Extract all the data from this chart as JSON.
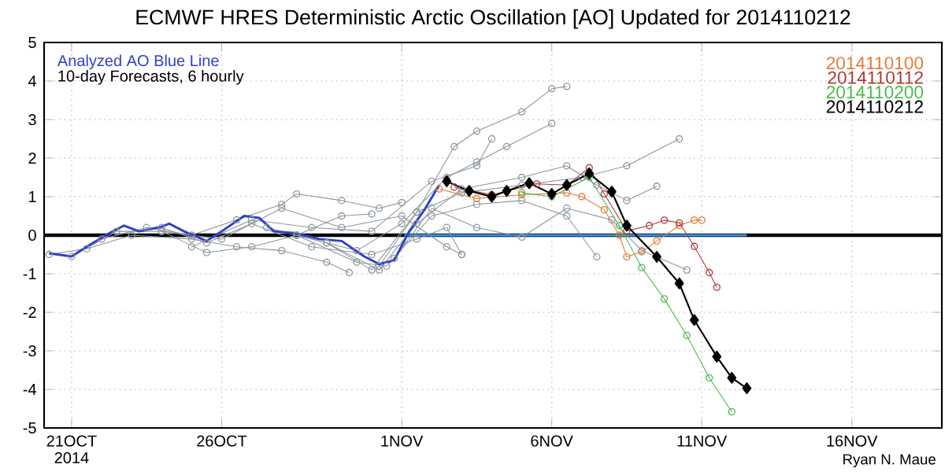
{
  "chart_data": {
    "type": "line",
    "title": "ECMWF HRES Deterministic Arctic Oscillation [AO] Updated for 2014110212",
    "annotations": [
      "Analyzed AO Blue Line",
      "10-day Forecasts, 6 hourly",
      "Ryan N. Maue"
    ],
    "xlim": [
      "2014-10-20T02:00",
      "2014-11-19T00:00"
    ],
    "xticks": [
      {
        "value": "2014-10-21",
        "label": "21OCT 2014"
      },
      {
        "value": "2014-10-26",
        "label": "26OCT"
      },
      {
        "value": "2014-11-01",
        "label": "1NOV"
      },
      {
        "value": "2014-11-06",
        "label": "6NOV"
      },
      {
        "value": "2014-11-11",
        "label": "11NOV"
      },
      {
        "value": "2014-11-16",
        "label": "16NOV"
      }
    ],
    "ylim": [
      -5,
      5
    ],
    "yticks": [
      -5,
      -4,
      -3,
      -2,
      -1,
      0,
      1,
      2,
      3,
      4,
      5
    ],
    "grid": true,
    "legend": "top right",
    "ref_lines": [
      {
        "axis": "y",
        "value": 0,
        "color": "#000000"
      }
    ],
    "series": [
      {
        "color": "#8c969e",
        "marker": "circle",
        "x": [
          "2014-10-20T06:00",
          "2014-10-21T12:00",
          "2014-10-23T00:00",
          "2014-10-25T00:00",
          "2014-10-26T12:00",
          "2014-10-28T00:00",
          "2014-10-29T12:00",
          "2014-10-30T06:00"
        ],
        "values": [
          -0.5,
          -0.35,
          0.0,
          -0.1,
          -0.3,
          -0.4,
          -0.7,
          -0.97
        ]
      },
      {
        "color": "#8c969e",
        "marker": "circle",
        "x": [
          "2014-10-21T00:00",
          "2014-10-22T12:00",
          "2014-10-24T00:00",
          "2014-10-25T12:00",
          "2014-10-27T00:00",
          "2014-10-28T12:00",
          "2014-10-30T00:00",
          "2014-10-31T00:00"
        ],
        "values": [
          -0.55,
          0.1,
          0.1,
          -0.45,
          -0.3,
          0.0,
          0.5,
          0.55
        ]
      },
      {
        "color": "#8c969e",
        "marker": "circle",
        "x": [
          "2014-10-22T00:00",
          "2014-10-23T12:00",
          "2014-10-25T00:00",
          "2014-10-26T12:00",
          "2014-10-28T00:00",
          "2014-10-28T12:00",
          "2014-10-30T00:00",
          "2014-10-31T06:00",
          "2014-11-01T00:00"
        ],
        "values": [
          -0.1,
          0.2,
          0.0,
          0.4,
          0.8,
          1.07,
          0.9,
          0.7,
          0.85
        ]
      },
      {
        "color": "#8c969e",
        "marker": "circle",
        "x": [
          "2014-10-24T00:00",
          "2014-10-25T12:00",
          "2014-10-27T00:00",
          "2014-10-29T00:00",
          "2014-10-31T00:00",
          "2014-11-01T12:00",
          "2014-11-02T12:00",
          "2014-11-03T00:00"
        ],
        "values": [
          0.2,
          -0.2,
          0.3,
          -0.3,
          -0.5,
          -0.1,
          0.2,
          -0.5
        ]
      },
      {
        "color": "#8c969e",
        "marker": "circle",
        "x": [
          "2014-10-25T00:00",
          "2014-10-27T00:00",
          "2014-10-29T00:00",
          "2014-10-31T00:00",
          "2014-11-02T00:00",
          "2014-11-03T12:00",
          "2014-11-04T00:00"
        ],
        "values": [
          -0.3,
          0.4,
          0.2,
          0.1,
          1.4,
          1.8,
          2.5
        ]
      },
      {
        "color": "#8c969e",
        "marker": "circle",
        "x": [
          "2014-10-28T12:00",
          "2014-10-30T12:00",
          "2014-11-01T00:00",
          "2014-11-02T12:00",
          "2014-11-03T12:00",
          "2014-11-04T12:00",
          "2014-11-06T00:00"
        ],
        "values": [
          0.0,
          -0.4,
          0.3,
          1.5,
          1.9,
          2.3,
          2.9
        ]
      },
      {
        "color": "#8c969e",
        "marker": "circle",
        "x": [
          "2014-10-27T12:00",
          "2014-10-29T12:00",
          "2014-10-31T00:00",
          "2014-11-01T12:00",
          "2014-11-02T18:00",
          "2014-11-03T12:00",
          "2014-11-05T00:00",
          "2014-11-06T00:00",
          "2014-11-06T12:00"
        ],
        "values": [
          0.2,
          -0.2,
          -0.9,
          0.6,
          2.3,
          2.7,
          3.2,
          3.8,
          3.86
        ]
      },
      {
        "color": "#8c969e",
        "marker": "circle",
        "x": [
          "2014-10-28T12:00",
          "2014-10-30T12:00",
          "2014-10-31T12:00",
          "2014-11-02T00:00",
          "2014-11-03T12:00",
          "2014-11-05T00:00",
          "2014-11-06T12:00",
          "2014-11-07T12:00"
        ],
        "values": [
          0.0,
          -0.7,
          -0.8,
          0.5,
          0.8,
          0.9,
          0.5,
          -0.56
        ]
      },
      {
        "color": "#8c969e",
        "marker": "circle",
        "x": [
          "2014-10-29T12:00",
          "2014-10-31T06:00",
          "2014-11-01T12:00",
          "2014-11-03T00:00",
          "2014-11-05T00:00",
          "2014-11-06T12:00",
          "2014-11-07T12:00",
          "2014-11-08T12:00",
          "2014-11-09T12:00"
        ],
        "values": [
          -0.2,
          -0.9,
          0.3,
          1.2,
          1.5,
          1.8,
          1.3,
          0.9,
          1.27
        ]
      },
      {
        "color": "#8c969e",
        "marker": "circle",
        "x": [
          "2014-10-31T06:00",
          "2014-11-01T12:00",
          "2014-11-03T00:00",
          "2014-11-05T00:00",
          "2014-11-07T00:00",
          "2014-11-08T12:00",
          "2014-11-10T06:00"
        ],
        "values": [
          -0.8,
          0.6,
          1.1,
          1.3,
          1.5,
          1.8,
          2.5
        ]
      },
      {
        "color": "#8c969e",
        "marker": "circle",
        "x": [
          "2014-10-31T18:00",
          "2014-11-02T00:00",
          "2014-11-03T12:00",
          "2014-11-05T00:00",
          "2014-11-06T12:00",
          "2014-11-08T00:00",
          "2014-11-09T00:00",
          "2014-11-10T12:00"
        ],
        "values": [
          -0.6,
          0.7,
          0.2,
          -0.05,
          0.7,
          0.4,
          -0.4,
          -0.9
        ]
      },
      {
        "color": "#8c969e",
        "marker": "circle",
        "x": [
          "2014-10-24T00:00",
          "2014-10-26T00:00",
          "2014-10-28T00:00",
          "2014-10-30T00:00",
          "2014-11-01T00:00",
          "2014-11-02T12:00",
          "2014-11-03T00:00"
        ],
        "values": [
          0.1,
          -0.1,
          0.7,
          0.2,
          0.5,
          -0.3,
          -0.5
        ]
      },
      {
        "color": "#3a8fd8",
        "marker": "none",
        "x": [
          "2014-11-01T02:00",
          "2014-11-12T12:00"
        ],
        "values": [
          0,
          0
        ]
      },
      {
        "color": "#3040c8",
        "marker": "none",
        "x": [
          "2014-10-20T06:00",
          "2014-10-21T00:00",
          "2014-10-21T12:00",
          "2014-10-22T06:00",
          "2014-10-22T18:00",
          "2014-10-23T06:00",
          "2014-10-24T00:00",
          "2014-10-24T06:00",
          "2014-10-24T18:00",
          "2014-10-25T12:00",
          "2014-10-26T00:00",
          "2014-10-26T18:00",
          "2014-10-27T06:00",
          "2014-10-27T18:00",
          "2014-10-28T12:00",
          "2014-10-29T06:00",
          "2014-10-30T00:00",
          "2014-10-30T18:00",
          "2014-10-31T06:00",
          "2014-10-31T18:00",
          "2014-11-01T06:00",
          "2014-11-01T18:00",
          "2014-11-02T06:00"
        ],
        "values": [
          -0.47,
          -0.55,
          -0.3,
          0.05,
          0.25,
          0.1,
          0.22,
          0.3,
          0.1,
          -0.15,
          0.1,
          0.5,
          0.45,
          0.1,
          0.05,
          -0.1,
          -0.15,
          -0.55,
          -0.75,
          -0.65,
          0.1,
          0.65,
          1.3
        ]
      },
      {
        "name": "2014110100",
        "color": "#e07b39",
        "marker": "circle",
        "x": [
          "2014-11-02T06:00",
          "2014-11-03T12:00",
          "2014-11-05T00:00",
          "2014-11-06T12:00",
          "2014-11-07T00:00",
          "2014-11-07T18:00",
          "2014-11-08T06:00",
          "2014-11-08T12:00",
          "2014-11-09T00:00",
          "2014-11-09T12:00",
          "2014-11-10T06:00",
          "2014-11-10T18:00",
          "2014-11-11T00:00"
        ],
        "values": [
          1.2,
          0.95,
          1.05,
          1.1,
          1.0,
          0.66,
          0.0,
          -0.56,
          -0.43,
          -0.15,
          0.25,
          0.39,
          0.39
        ]
      },
      {
        "name": "2014110112",
        "color": "#b03a3a",
        "marker": "circle",
        "x": [
          "2014-11-02T18:00",
          "2014-11-04T00:00",
          "2014-11-05T12:00",
          "2014-11-06T12:00",
          "2014-11-07T06:00",
          "2014-11-07T18:00",
          "2014-11-08T12:00",
          "2014-11-09T06:00",
          "2014-11-09T18:00",
          "2014-11-10T06:00",
          "2014-11-10T18:00",
          "2014-11-11T06:00",
          "2014-11-11T12:00"
        ],
        "values": [
          1.25,
          1.05,
          1.33,
          1.3,
          1.75,
          1.07,
          0.11,
          0.25,
          0.39,
          0.32,
          -0.29,
          -0.97,
          -1.35
        ]
      },
      {
        "name": "2014110200",
        "color": "#4cbb4c",
        "marker": "circle",
        "x": [
          "2014-11-05T00:00",
          "2014-11-06T00:00",
          "2014-11-07T06:00",
          "2014-11-08T06:00",
          "2014-11-09T00:00",
          "2014-11-09T18:00",
          "2014-11-10T12:00",
          "2014-11-11T06:00",
          "2014-11-12T00:00"
        ],
        "values": [
          1.1,
          1.0,
          1.5,
          0.25,
          -0.84,
          -1.65,
          -2.6,
          -3.7,
          -4.58
        ]
      },
      {
        "name": "2014110212",
        "color": "#000000",
        "marker": "diamond",
        "x": [
          "2014-11-02T12:00",
          "2014-11-03T06:00",
          "2014-11-04T00:00",
          "2014-11-04T12:00",
          "2014-11-05T06:00",
          "2014-11-06T00:00",
          "2014-11-06T12:00",
          "2014-11-07T06:00",
          "2014-11-08T00:00",
          "2014-11-08T12:00",
          "2014-11-09T12:00",
          "2014-11-10T06:00",
          "2014-11-10T18:00",
          "2014-11-11T12:00",
          "2014-11-12T00:00",
          "2014-11-12T12:00"
        ],
        "values": [
          1.4,
          1.15,
          1.0,
          1.15,
          1.35,
          1.07,
          1.3,
          1.6,
          1.13,
          0.25,
          -0.56,
          -1.25,
          -2.2,
          -3.15,
          -3.7,
          -3.97
        ]
      }
    ]
  }
}
